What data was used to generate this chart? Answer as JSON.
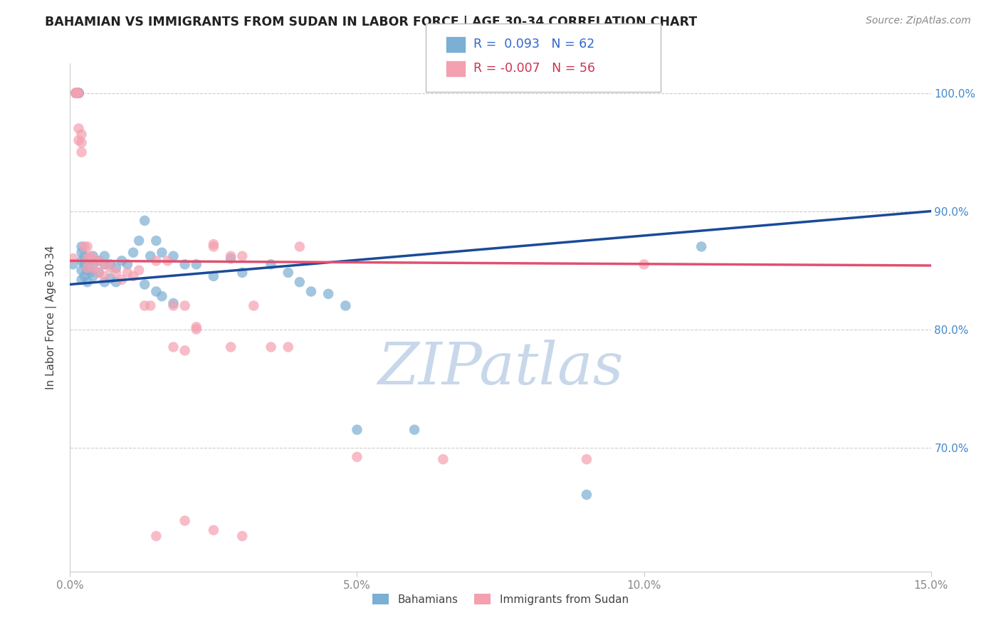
{
  "title": "BAHAMIAN VS IMMIGRANTS FROM SUDAN IN LABOR FORCE | AGE 30-34 CORRELATION CHART",
  "source": "Source: ZipAtlas.com",
  "ylabel": "In Labor Force | Age 30-34",
  "xlim": [
    0.0,
    0.15
  ],
  "ylim": [
    0.595,
    1.025
  ],
  "ytick_vals": [
    0.7,
    0.8,
    0.9,
    1.0
  ],
  "ytick_labels": [
    "70.0%",
    "80.0%",
    "90.0%",
    "100.0%"
  ],
  "xtick_vals": [
    0.0,
    0.05,
    0.1,
    0.15
  ],
  "xtick_labels": [
    "0.0%",
    "5.0%",
    "10.0%",
    "15.0%"
  ],
  "blue_R": 0.093,
  "blue_N": 62,
  "pink_R": -0.007,
  "pink_N": 56,
  "blue_color": "#7bafd4",
  "pink_color": "#f4a0b0",
  "blue_line_color": "#1a4a9a",
  "pink_line_color": "#e05070",
  "grid_color": "#cccccc",
  "watermark": "ZIPatlas",
  "watermark_color": "#c8d8ea",
  "legend_label_blue": "Bahamians",
  "legend_label_pink": "Immigrants from Sudan",
  "blue_line_x0": 0.0,
  "blue_line_y0": 0.838,
  "blue_line_x1": 0.15,
  "blue_line_y1": 0.9,
  "pink_line_x0": 0.0,
  "pink_line_y0": 0.858,
  "pink_line_x1": 0.15,
  "pink_line_y1": 0.854,
  "blue_x": [
    0.0005,
    0.001,
    0.001,
    0.0012,
    0.0013,
    0.0015,
    0.0015,
    0.0015,
    0.0015,
    0.002,
    0.002,
    0.002,
    0.002,
    0.002,
    0.0025,
    0.0025,
    0.0025,
    0.003,
    0.003,
    0.003,
    0.0035,
    0.0035,
    0.004,
    0.004,
    0.004,
    0.005,
    0.005,
    0.006,
    0.006,
    0.006,
    0.007,
    0.007,
    0.008,
    0.008,
    0.009,
    0.01,
    0.011,
    0.012,
    0.013,
    0.014,
    0.015,
    0.016,
    0.018,
    0.02,
    0.022,
    0.025,
    0.028,
    0.03,
    0.035,
    0.038,
    0.04,
    0.042,
    0.045,
    0.048,
    0.013,
    0.015,
    0.016,
    0.018,
    0.05,
    0.06,
    0.09,
    0.11
  ],
  "blue_y": [
    0.855,
    1.0,
    1.0,
    1.0,
    1.0,
    1.0,
    1.0,
    1.0,
    1.0,
    0.87,
    0.865,
    0.858,
    0.85,
    0.842,
    0.862,
    0.855,
    0.845,
    0.86,
    0.85,
    0.84,
    0.858,
    0.848,
    0.862,
    0.855,
    0.845,
    0.858,
    0.848,
    0.862,
    0.855,
    0.84,
    0.855,
    0.843,
    0.852,
    0.84,
    0.858,
    0.855,
    0.865,
    0.875,
    0.892,
    0.862,
    0.875,
    0.865,
    0.862,
    0.855,
    0.855,
    0.845,
    0.86,
    0.848,
    0.855,
    0.848,
    0.84,
    0.832,
    0.83,
    0.82,
    0.838,
    0.832,
    0.828,
    0.822,
    0.715,
    0.715,
    0.66,
    0.87
  ],
  "pink_x": [
    0.0005,
    0.001,
    0.001,
    0.001,
    0.0012,
    0.0013,
    0.0015,
    0.0015,
    0.0015,
    0.002,
    0.002,
    0.002,
    0.0025,
    0.003,
    0.003,
    0.003,
    0.0035,
    0.004,
    0.004,
    0.005,
    0.005,
    0.006,
    0.006,
    0.007,
    0.008,
    0.009,
    0.01,
    0.011,
    0.012,
    0.013,
    0.014,
    0.015,
    0.017,
    0.018,
    0.02,
    0.022,
    0.025,
    0.028,
    0.03,
    0.032,
    0.018,
    0.02,
    0.022,
    0.025,
    0.028,
    0.035,
    0.038,
    0.04,
    0.05,
    0.065,
    0.09,
    0.1,
    0.015,
    0.02,
    0.025,
    0.03
  ],
  "pink_y": [
    0.86,
    1.0,
    1.0,
    1.0,
    1.0,
    1.0,
    1.0,
    0.97,
    0.96,
    0.965,
    0.958,
    0.95,
    0.87,
    0.87,
    0.86,
    0.852,
    0.862,
    0.86,
    0.852,
    0.858,
    0.848,
    0.855,
    0.845,
    0.852,
    0.848,
    0.842,
    0.848,
    0.845,
    0.85,
    0.82,
    0.82,
    0.858,
    0.858,
    0.82,
    0.82,
    0.802,
    0.87,
    0.862,
    0.862,
    0.82,
    0.785,
    0.782,
    0.8,
    0.872,
    0.785,
    0.785,
    0.785,
    0.87,
    0.692,
    0.69,
    0.69,
    0.855,
    0.625,
    0.638,
    0.63,
    0.625
  ]
}
